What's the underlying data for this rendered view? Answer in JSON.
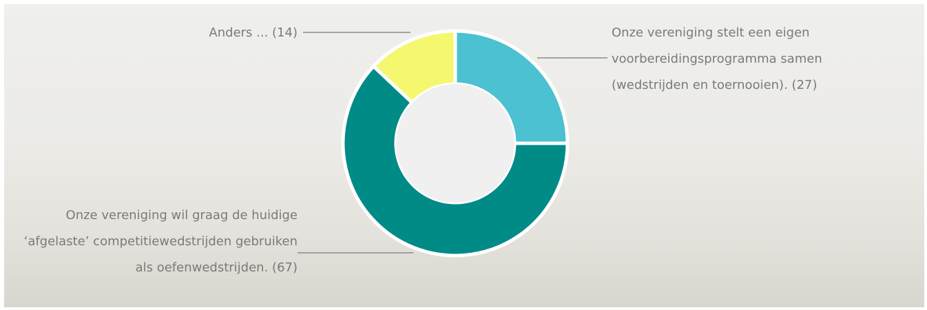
{
  "chart_data": {
    "type": "donut",
    "categories": [
      "Onze vereniging stelt een eigen voorbereidingsprogramma samen (wedstrijden en toernooien).",
      "Onze vereniging wil graag de huidige ‘afgelaste’ competitiewedstrijden gebruiken als oefenwedstrijden.",
      "Anders ..."
    ],
    "values": [
      27,
      67,
      14
    ],
    "value_labels": [
      "(27)",
      "(67)",
      "(14)"
    ],
    "colors": [
      "#4bc1d2",
      "#008b87",
      "#f5f76e"
    ]
  }
}
